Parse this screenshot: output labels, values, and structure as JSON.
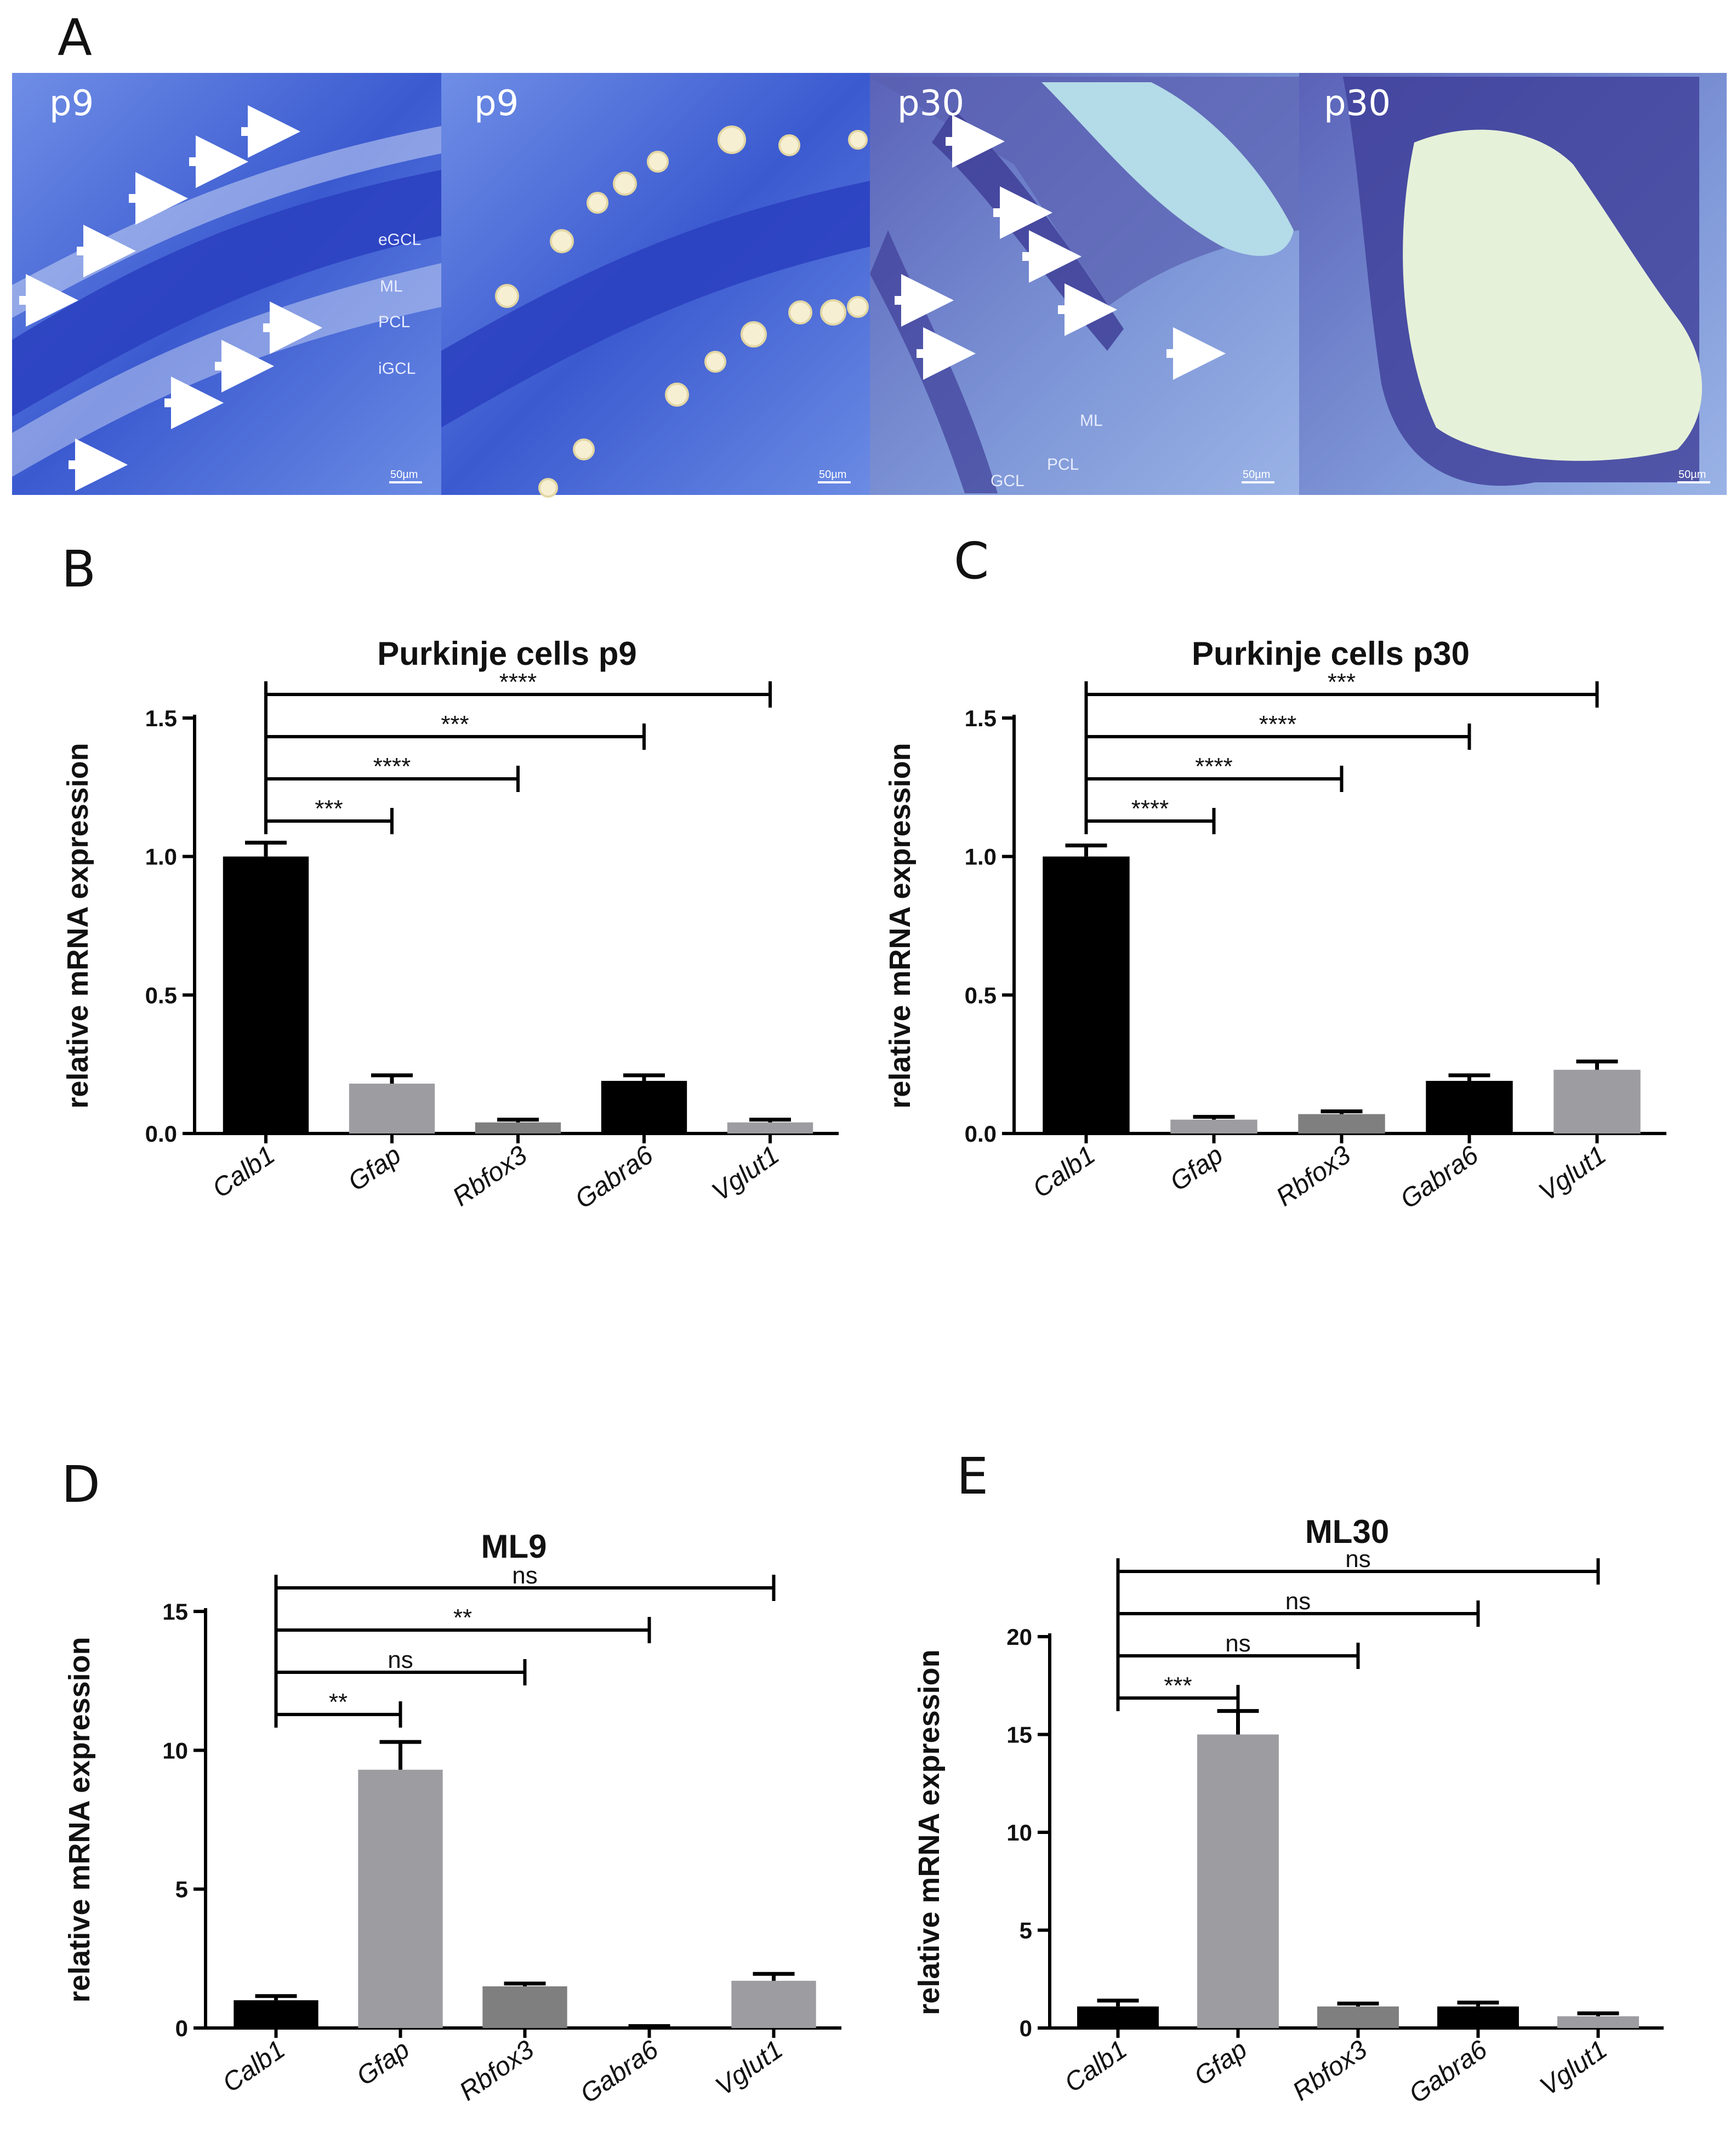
{
  "panel_letters": {
    "a": "A",
    "b": "B",
    "c": "C",
    "d": "D",
    "e": "E"
  },
  "micrographs": [
    {
      "stage": "p9",
      "layers": [
        "eGCL",
        "ML",
        "PCL",
        "iGCL"
      ],
      "scale": "50µm"
    },
    {
      "stage": "p9",
      "layers": [],
      "scale": "50µm"
    },
    {
      "stage": "p30",
      "layers": [
        "ML",
        "PCL",
        "GCL"
      ],
      "scale": "50µm"
    },
    {
      "stage": "p30",
      "layers": [],
      "scale": "50µm"
    }
  ],
  "colors": {
    "black": "#000000",
    "gray": "#9d9da1",
    "darkgray": "#7f7f7f",
    "tissue": "#3a5bcf"
  },
  "chart_data": [
    {
      "panel": "B",
      "type": "bar",
      "title": "Purkinje cells p9",
      "ylabel": "relative mRNA expression",
      "ylim": [
        0,
        1.5
      ],
      "yticks": [
        "0.0",
        "0.5",
        "1.0",
        "1.5"
      ],
      "ytick_values": [
        0,
        0.5,
        1.0,
        1.5
      ],
      "categories": [
        "Calb1",
        "Gfap",
        "Rbfox3",
        "Gabra6",
        "Vglut1"
      ],
      "values": [
        1.0,
        0.18,
        0.04,
        0.19,
        0.04
      ],
      "errors": [
        0.05,
        0.03,
        0.01,
        0.02,
        0.01
      ],
      "bar_colors": [
        "black",
        "gray",
        "darkgray",
        "black",
        "gray"
      ],
      "significance": [
        {
          "to": "Gfap",
          "label": "***"
        },
        {
          "to": "Rbfox3",
          "label": "****"
        },
        {
          "to": "Gabra6",
          "label": "***"
        },
        {
          "to": "Vglut1",
          "label": "****"
        }
      ]
    },
    {
      "panel": "C",
      "type": "bar",
      "title": "Purkinje cells p30",
      "ylabel": "relative mRNA expression",
      "ylim": [
        0,
        1.5
      ],
      "yticks": [
        "0.0",
        "0.5",
        "1.0",
        "1.5"
      ],
      "ytick_values": [
        0,
        0.5,
        1.0,
        1.5
      ],
      "categories": [
        "Calb1",
        "Gfap",
        "Rbfox3",
        "Gabra6",
        "Vglut1"
      ],
      "values": [
        1.0,
        0.05,
        0.07,
        0.19,
        0.23
      ],
      "errors": [
        0.04,
        0.01,
        0.01,
        0.02,
        0.03
      ],
      "bar_colors": [
        "black",
        "gray",
        "darkgray",
        "black",
        "gray"
      ],
      "significance": [
        {
          "to": "Gfap",
          "label": "****"
        },
        {
          "to": "Rbfox3",
          "label": "****"
        },
        {
          "to": "Gabra6",
          "label": "****"
        },
        {
          "to": "Vglut1",
          "label": "***"
        }
      ]
    },
    {
      "panel": "D",
      "type": "bar",
      "title": "ML9",
      "ylabel": "relative mRNA expression",
      "ylim": [
        0,
        15
      ],
      "yticks": [
        "0",
        "5",
        "10",
        "15"
      ],
      "ytick_values": [
        0,
        5,
        10,
        15
      ],
      "categories": [
        "Calb1",
        "Gfap",
        "Rbfox3",
        "Gabra6",
        "Vglut1"
      ],
      "values": [
        1.0,
        9.3,
        1.5,
        0.05,
        1.7
      ],
      "errors": [
        0.15,
        1.0,
        0.1,
        0.02,
        0.25
      ],
      "bar_colors": [
        "black",
        "gray",
        "darkgray",
        "black",
        "gray"
      ],
      "significance": [
        {
          "to": "Gfap",
          "label": "**"
        },
        {
          "to": "Rbfox3",
          "label": "ns"
        },
        {
          "to": "Gabra6",
          "label": "**"
        },
        {
          "to": "Vglut1",
          "label": "ns"
        }
      ]
    },
    {
      "panel": "E",
      "type": "bar",
      "title": "ML30",
      "ylabel": "relative mRNA expression",
      "ylim": [
        0,
        20
      ],
      "yticks": [
        "0",
        "5",
        "10",
        "15",
        "20"
      ],
      "ytick_values": [
        0,
        5,
        10,
        15,
        20
      ],
      "categories": [
        "Calb1",
        "Gfap",
        "Rbfox3",
        "Gabra6",
        "Vglut1"
      ],
      "values": [
        1.1,
        15.0,
        1.1,
        1.1,
        0.6
      ],
      "errors": [
        0.3,
        1.2,
        0.15,
        0.2,
        0.15
      ],
      "bar_colors": [
        "black",
        "gray",
        "darkgray",
        "black",
        "gray"
      ],
      "significance": [
        {
          "to": "Gfap",
          "label": "***"
        },
        {
          "to": "Rbfox3",
          "label": "ns"
        },
        {
          "to": "Gabra6",
          "label": "ns"
        },
        {
          "to": "Vglut1",
          "label": "ns"
        }
      ]
    }
  ]
}
